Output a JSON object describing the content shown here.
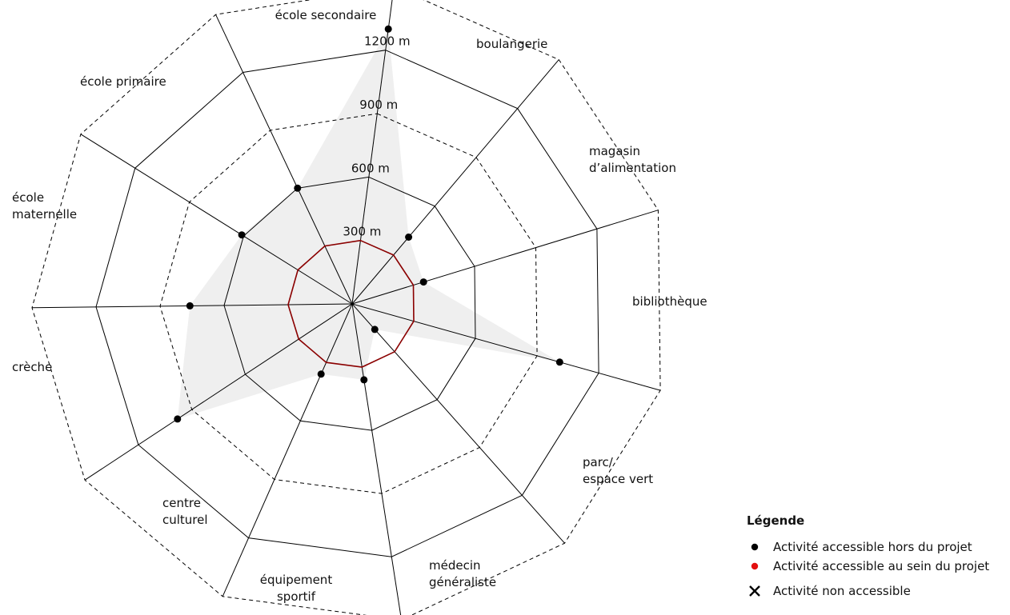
{
  "chart_data": {
    "type": "radar",
    "categories": [
      "école secondaire",
      "boulangerie",
      "magasin\nd’alimentation",
      "bibliothèque",
      "parc/\nespace vert",
      "médecin\ngénéraliste",
      "équipement\nsportif",
      "centre\nculturel",
      "crèche",
      "école\nmaternelle",
      "école primaire"
    ],
    "rings": [
      300,
      600,
      900,
      1200,
      1500
    ],
    "ring_labels": [
      "300 m",
      "600 m",
      "900 m",
      "1200 m"
    ],
    "rlim": [
      0,
      1500
    ],
    "series": [
      {
        "name": "Activité accessible hors du projet",
        "values": [
          1300,
          410,
          350,
          1010,
          160,
          360,
          360,
          980,
          760,
          610,
          600
        ],
        "color": "#000000",
        "marker": "dot"
      },
      {
        "values": [
          300,
          300,
          300,
          300,
          300,
          300,
          300,
          300,
          300,
          300,
          300
        ],
        "color": "#8b0000",
        "marker": "line"
      }
    ],
    "legend": {
      "title": "Légende",
      "position": "bottom-right",
      "items": [
        {
          "label": "Activité accessible hors du projet",
          "symbol": "dot",
          "color": "#000000"
        },
        {
          "label": "Activité accessible au sein du projet",
          "symbol": "dot",
          "color": "#e31010"
        },
        {
          "label": "Activité non accessible",
          "symbol": "x",
          "color": "#000000"
        }
      ]
    },
    "colors": {
      "shaded_area": "#efefef",
      "grid": "#000000",
      "inner_ring": "#8b0000"
    }
  }
}
